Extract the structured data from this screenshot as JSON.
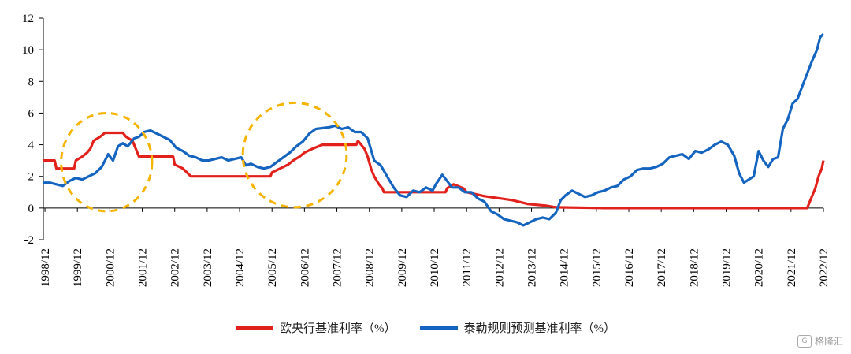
{
  "chart_data": {
    "type": "line",
    "x_labels": [
      "1998/12",
      "1999/12",
      "2000/12",
      "2001/12",
      "2002/12",
      "2003/12",
      "2004/12",
      "2005/12",
      "2006/12",
      "2007/12",
      "2008/12",
      "2009/12",
      "2010/12",
      "2011/12",
      "2012/12",
      "2013/12",
      "2014/12",
      "2015/12",
      "2016/12",
      "2017/12",
      "2018/12",
      "2019/12",
      "2020/12",
      "2021/12",
      "2022/12"
    ],
    "xlim": [
      1998.9,
      2022.95
    ],
    "ylim": [
      -2,
      12
    ],
    "y_ticks": [
      -2,
      0,
      2,
      4,
      6,
      8,
      10,
      12
    ],
    "series": [
      {
        "name": "欧央行基准利率（%）",
        "color": "#e3211c",
        "points": [
          [
            1998.9,
            3.0
          ],
          [
            1999.25,
            3.0
          ],
          [
            1999.3,
            2.5
          ],
          [
            1999.85,
            2.5
          ],
          [
            1999.9,
            3.0
          ],
          [
            2000.1,
            3.25
          ],
          [
            2000.25,
            3.5
          ],
          [
            2000.35,
            3.75
          ],
          [
            2000.45,
            4.25
          ],
          [
            2000.65,
            4.5
          ],
          [
            2000.8,
            4.75
          ],
          [
            2001.35,
            4.75
          ],
          [
            2001.45,
            4.5
          ],
          [
            2001.65,
            4.25
          ],
          [
            2001.75,
            3.75
          ],
          [
            2001.85,
            3.25
          ],
          [
            2002.9,
            3.25
          ],
          [
            2002.95,
            2.75
          ],
          [
            2003.2,
            2.5
          ],
          [
            2003.45,
            2.0
          ],
          [
            2005.9,
            2.0
          ],
          [
            2005.95,
            2.25
          ],
          [
            2006.2,
            2.5
          ],
          [
            2006.45,
            2.75
          ],
          [
            2006.6,
            3.0
          ],
          [
            2006.8,
            3.25
          ],
          [
            2006.95,
            3.5
          ],
          [
            2007.2,
            3.75
          ],
          [
            2007.5,
            4.0
          ],
          [
            2008.55,
            4.0
          ],
          [
            2008.6,
            4.25
          ],
          [
            2008.8,
            3.75
          ],
          [
            2008.9,
            3.25
          ],
          [
            2009.0,
            2.5
          ],
          [
            2009.1,
            2.0
          ],
          [
            2009.25,
            1.5
          ],
          [
            2009.35,
            1.25
          ],
          [
            2009.4,
            1.0
          ],
          [
            2011.3,
            1.0
          ],
          [
            2011.35,
            1.25
          ],
          [
            2011.55,
            1.5
          ],
          [
            2011.85,
            1.25
          ],
          [
            2011.95,
            1.0
          ],
          [
            2012.5,
            0.75
          ],
          [
            2013.35,
            0.5
          ],
          [
            2013.85,
            0.25
          ],
          [
            2014.4,
            0.15
          ],
          [
            2014.7,
            0.05
          ],
          [
            2016.2,
            0.0
          ],
          [
            2022.45,
            0.0
          ],
          [
            2022.55,
            0.5
          ],
          [
            2022.7,
            1.25
          ],
          [
            2022.8,
            2.0
          ],
          [
            2022.9,
            2.5
          ],
          [
            2022.95,
            3.0
          ]
        ]
      },
      {
        "name": "泰勒规则预测基准利率（%）",
        "color": "#1565c0",
        "points": [
          [
            1998.9,
            1.6
          ],
          [
            1999.1,
            1.6
          ],
          [
            1999.3,
            1.5
          ],
          [
            1999.5,
            1.4
          ],
          [
            1999.7,
            1.7
          ],
          [
            1999.9,
            1.9
          ],
          [
            2000.1,
            1.8
          ],
          [
            2000.3,
            2.0
          ],
          [
            2000.5,
            2.2
          ],
          [
            2000.7,
            2.6
          ],
          [
            2000.9,
            3.4
          ],
          [
            2001.05,
            3.0
          ],
          [
            2001.2,
            3.9
          ],
          [
            2001.35,
            4.1
          ],
          [
            2001.5,
            3.9
          ],
          [
            2001.7,
            4.4
          ],
          [
            2001.85,
            4.5
          ],
          [
            2002.0,
            4.8
          ],
          [
            2002.2,
            4.9
          ],
          [
            2002.4,
            4.7
          ],
          [
            2002.6,
            4.5
          ],
          [
            2002.8,
            4.3
          ],
          [
            2003.0,
            3.8
          ],
          [
            2003.2,
            3.6
          ],
          [
            2003.4,
            3.3
          ],
          [
            2003.6,
            3.2
          ],
          [
            2003.8,
            3.0
          ],
          [
            2004.0,
            3.0
          ],
          [
            2004.2,
            3.1
          ],
          [
            2004.4,
            3.2
          ],
          [
            2004.6,
            3.0
          ],
          [
            2004.8,
            3.1
          ],
          [
            2005.0,
            3.2
          ],
          [
            2005.15,
            2.7
          ],
          [
            2005.3,
            2.8
          ],
          [
            2005.5,
            2.6
          ],
          [
            2005.7,
            2.5
          ],
          [
            2005.9,
            2.6
          ],
          [
            2006.1,
            2.9
          ],
          [
            2006.3,
            3.2
          ],
          [
            2006.5,
            3.5
          ],
          [
            2006.7,
            3.9
          ],
          [
            2006.9,
            4.2
          ],
          [
            2007.1,
            4.7
          ],
          [
            2007.3,
            5.0
          ],
          [
            2007.5,
            5.05
          ],
          [
            2007.7,
            5.1
          ],
          [
            2007.9,
            5.2
          ],
          [
            2008.1,
            5.0
          ],
          [
            2008.3,
            5.1
          ],
          [
            2008.5,
            4.8
          ],
          [
            2008.7,
            4.8
          ],
          [
            2008.9,
            4.4
          ],
          [
            2009.1,
            3.0
          ],
          [
            2009.3,
            2.7
          ],
          [
            2009.5,
            2.0
          ],
          [
            2009.7,
            1.3
          ],
          [
            2009.9,
            0.8
          ],
          [
            2010.1,
            0.7
          ],
          [
            2010.3,
            1.1
          ],
          [
            2010.5,
            1.0
          ],
          [
            2010.7,
            1.3
          ],
          [
            2010.9,
            1.1
          ],
          [
            2011.0,
            1.5
          ],
          [
            2011.2,
            2.1
          ],
          [
            2011.35,
            1.7
          ],
          [
            2011.5,
            1.3
          ],
          [
            2011.7,
            1.3
          ],
          [
            2011.9,
            1.0
          ],
          [
            2012.1,
            1.0
          ],
          [
            2012.3,
            0.6
          ],
          [
            2012.5,
            0.4
          ],
          [
            2012.7,
            -0.2
          ],
          [
            2012.9,
            -0.4
          ],
          [
            2013.1,
            -0.7
          ],
          [
            2013.3,
            -0.8
          ],
          [
            2013.5,
            -0.9
          ],
          [
            2013.7,
            -1.1
          ],
          [
            2013.9,
            -0.9
          ],
          [
            2014.1,
            -0.7
          ],
          [
            2014.3,
            -0.6
          ],
          [
            2014.5,
            -0.7
          ],
          [
            2014.7,
            -0.3
          ],
          [
            2014.85,
            0.5
          ],
          [
            2015.0,
            0.8
          ],
          [
            2015.2,
            1.1
          ],
          [
            2015.4,
            0.9
          ],
          [
            2015.6,
            0.7
          ],
          [
            2015.8,
            0.8
          ],
          [
            2016.0,
            1.0
          ],
          [
            2016.2,
            1.1
          ],
          [
            2016.4,
            1.3
          ],
          [
            2016.6,
            1.4
          ],
          [
            2016.8,
            1.8
          ],
          [
            2017.0,
            2.0
          ],
          [
            2017.2,
            2.4
          ],
          [
            2017.4,
            2.5
          ],
          [
            2017.6,
            2.5
          ],
          [
            2017.8,
            2.6
          ],
          [
            2018.0,
            2.8
          ],
          [
            2018.2,
            3.2
          ],
          [
            2018.4,
            3.3
          ],
          [
            2018.6,
            3.4
          ],
          [
            2018.8,
            3.1
          ],
          [
            2019.0,
            3.6
          ],
          [
            2019.2,
            3.5
          ],
          [
            2019.4,
            3.7
          ],
          [
            2019.6,
            4.0
          ],
          [
            2019.8,
            4.2
          ],
          [
            2020.0,
            4.0
          ],
          [
            2020.2,
            3.3
          ],
          [
            2020.35,
            2.2
          ],
          [
            2020.5,
            1.6
          ],
          [
            2020.65,
            1.8
          ],
          [
            2020.8,
            2.0
          ],
          [
            2020.95,
            3.6
          ],
          [
            2021.1,
            3.0
          ],
          [
            2021.25,
            2.6
          ],
          [
            2021.4,
            3.1
          ],
          [
            2021.55,
            3.2
          ],
          [
            2021.7,
            5.0
          ],
          [
            2021.85,
            5.6
          ],
          [
            2022.0,
            6.6
          ],
          [
            2022.15,
            6.9
          ],
          [
            2022.3,
            7.7
          ],
          [
            2022.45,
            8.5
          ],
          [
            2022.6,
            9.3
          ],
          [
            2022.75,
            10.0
          ],
          [
            2022.85,
            10.8
          ],
          [
            2022.95,
            11.0
          ]
        ]
      }
    ],
    "annotations": [
      {
        "type": "ellipse",
        "cx": 2000.85,
        "cy": 2.9,
        "rx": 1.4,
        "ry": 3.1,
        "color": "#f4b400"
      },
      {
        "type": "ellipse",
        "cx": 2006.65,
        "cy": 3.35,
        "rx": 1.6,
        "ry": 3.3,
        "color": "#f4b400"
      }
    ]
  },
  "legend": [
    {
      "label": "欧央行基准利率（%）",
      "color": "#e3211c"
    },
    {
      "label": "泰勒规则预测基准利率（%）",
      "color": "#1565c0"
    }
  ],
  "watermark": {
    "text": "格隆汇",
    "icon": "G"
  }
}
